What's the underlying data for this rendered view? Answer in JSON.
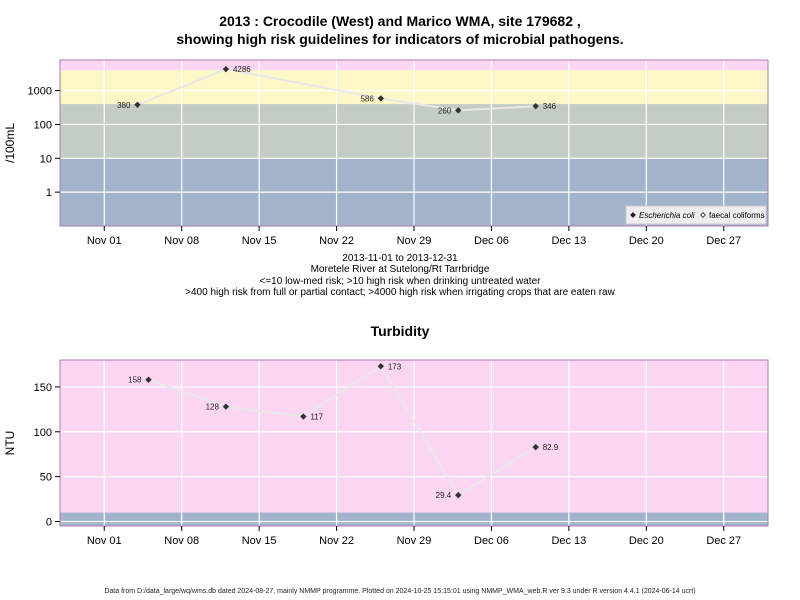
{
  "chart_data": [
    {
      "type": "line",
      "title_line1": "2013 : Crocodile (West) and Marico WMA, site 179682 ,",
      "title_line2": "showing high risk guidelines for indicators of microbial pathogens.",
      "ylabel": "/100mL",
      "y_scale": "log",
      "ylim": [
        0.1,
        8000
      ],
      "y_ticks": [
        {
          "value": 1,
          "label": "1"
        },
        {
          "value": 10,
          "label": "10"
        },
        {
          "value": 100,
          "label": "100"
        },
        {
          "value": 1000,
          "label": "1000"
        }
      ],
      "xlim": [
        "2013-10-28",
        "2013-12-31"
      ],
      "x_ticks": [
        {
          "date": "2013-11-01",
          "label": "Nov 01"
        },
        {
          "date": "2013-11-08",
          "label": "Nov 08"
        },
        {
          "date": "2013-11-15",
          "label": "Nov 15"
        },
        {
          "date": "2013-11-22",
          "label": "Nov 22"
        },
        {
          "date": "2013-11-29",
          "label": "Nov 29"
        },
        {
          "date": "2013-12-06",
          "label": "Dec 06"
        },
        {
          "date": "2013-12-13",
          "label": "Dec 13"
        },
        {
          "date": "2013-12-20",
          "label": "Dec 20"
        },
        {
          "date": "2013-12-27",
          "label": "Dec 27"
        }
      ],
      "bands": [
        {
          "from": 0.1,
          "to": 10,
          "color": "#a2b3cc"
        },
        {
          "from": 10,
          "to": 400,
          "color": "#c3cdc3"
        },
        {
          "from": 400,
          "to": 4000,
          "color": "#fdf7c8"
        },
        {
          "from": 4000,
          "to": 8000,
          "color": "#fbd6f2"
        }
      ],
      "series": [
        {
          "name": "Escherichia coli",
          "points": [
            {
              "x": "2013-11-04",
              "y": 380,
              "label": "380",
              "label_side": "left"
            },
            {
              "x": "2013-11-12",
              "y": 4286,
              "label": "4286",
              "label_side": "right"
            },
            {
              "x": "2013-11-26",
              "y": 586,
              "label": "586",
              "label_side": "left"
            },
            {
              "x": "2013-12-03",
              "y": 260,
              "label": "260",
              "label_side": "left"
            },
            {
              "x": "2013-12-10",
              "y": 346,
              "label": "346",
              "label_side": "right"
            }
          ]
        }
      ],
      "legend": {
        "placement": "bottom-right",
        "entries": [
          {
            "label": "Escherichia coli",
            "italic": true,
            "marker": "filled-diamond"
          },
          {
            "label": "faecal coliforms",
            "italic": false,
            "marker": "open-diamond"
          }
        ]
      },
      "caption": [
        "2013-11-01 to 2013-12-31",
        "Moretele River at Sutelong/Rt Tarrbridge",
        "<=10 low-med risk; >10 high risk when drinking untreated water",
        ">400 high risk from full or partial contact; >4000 high risk when irrigating crops that are eaten raw"
      ],
      "colors": {
        "line": "#e8e8e8",
        "marker": "#333333",
        "grid": "#ffffff",
        "frame": "#b07ab0"
      }
    },
    {
      "type": "line",
      "title": "Turbidity",
      "ylabel": "NTU",
      "y_scale": "linear",
      "ylim": [
        -5,
        180
      ],
      "y_ticks": [
        {
          "value": 0,
          "label": "0"
        },
        {
          "value": 50,
          "label": "50"
        },
        {
          "value": 100,
          "label": "100"
        },
        {
          "value": 150,
          "label": "150"
        }
      ],
      "xlim": [
        "2013-10-28",
        "2013-12-31"
      ],
      "x_ticks": [
        {
          "date": "2013-11-01",
          "label": "Nov 01"
        },
        {
          "date": "2013-11-08",
          "label": "Nov 08"
        },
        {
          "date": "2013-11-15",
          "label": "Nov 15"
        },
        {
          "date": "2013-11-22",
          "label": "Nov 22"
        },
        {
          "date": "2013-11-29",
          "label": "Nov 29"
        },
        {
          "date": "2013-12-06",
          "label": "Dec 06"
        },
        {
          "date": "2013-12-13",
          "label": "Dec 13"
        },
        {
          "date": "2013-12-20",
          "label": "Dec 20"
        },
        {
          "date": "2013-12-27",
          "label": "Dec 27"
        }
      ],
      "bands": [
        {
          "from": -5,
          "to": 10,
          "color": "#a2b3cc"
        },
        {
          "from": 10,
          "to": 180,
          "color": "#fbd6f2"
        }
      ],
      "series": [
        {
          "points": [
            {
              "x": "2013-11-05",
              "y": 158,
              "label": "158",
              "label_side": "left"
            },
            {
              "x": "2013-11-12",
              "y": 128,
              "label": "128",
              "label_side": "left"
            },
            {
              "x": "2013-11-19",
              "y": 117,
              "label": "117",
              "label_side": "right"
            },
            {
              "x": "2013-11-26",
              "y": 173,
              "label": "173",
              "label_side": "right"
            },
            {
              "x": "2013-12-03",
              "y": 29.4,
              "label": "29.4",
              "label_side": "left"
            },
            {
              "x": "2013-12-10",
              "y": 82.9,
              "label": "82.9",
              "label_side": "right"
            }
          ]
        }
      ],
      "colors": {
        "line": "#e8e8e8",
        "marker": "#333333",
        "grid": "#ffffff",
        "frame": "#b07ab0"
      }
    }
  ],
  "footer": "Data from D:/data_large/wq/wms.db dated 2024-08-27, mainly NMMP programme. Plotted on 2024-10-25 15:15:01 using NMMP_WMA_web.R ver 9.3 under R version 4.4.1 (2024-06-14 ucrt)"
}
